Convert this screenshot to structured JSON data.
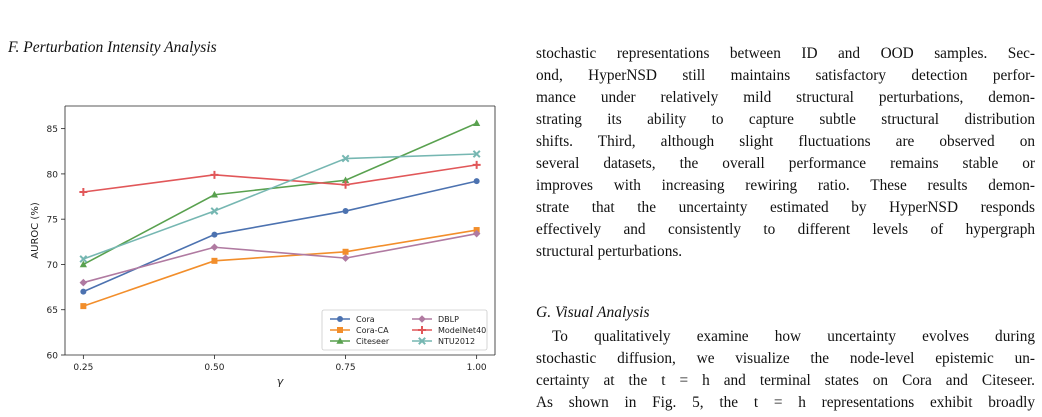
{
  "section_f": {
    "heading": "F. Perturbation Intensity Analysis"
  },
  "section_g": {
    "heading": "G. Visual Analysis"
  },
  "paragraph_1_lines": [
    "stochastic representations between ID and OOD samples. Sec-",
    "ond, HyperNSD still maintains satisfactory detection perfor-",
    "mance under relatively mild structural perturbations, demon-",
    "strating its ability to capture subtle structural distribution",
    "shifts. Third, although slight fluctuations are observed on",
    "several datasets, the overall performance remains stable or",
    "improves with increasing rewiring ratio. These results demon-",
    "strate that the uncertainty estimated by HyperNSD responds",
    "effectively and consistently to different levels of hypergraph",
    "structural perturbations."
  ],
  "paragraph_2_lines": [
    "To qualitatively examine how uncertainty evolves during",
    "stochastic diffusion, we visualize the node-level epistemic un-",
    "certainty at the t = h and terminal states on Cora and Citeseer.",
    "As shown in Fig. 5, the t = h representations exhibit broadly"
  ],
  "chart_data": {
    "type": "line",
    "xlabel": "γ",
    "ylabel": "AUROC (%)",
    "x": [
      0.25,
      0.5,
      0.75,
      1.0
    ],
    "x_tick_labels": [
      "0.25",
      "0.50",
      "0.75",
      "1.00"
    ],
    "y_ticks": [
      60,
      65,
      70,
      75,
      80,
      85
    ],
    "y_tick_labels": [
      "60",
      "65",
      "70",
      "75",
      "80",
      "85"
    ],
    "xlim": [
      0.215,
      1.035
    ],
    "ylim": [
      60,
      87.5
    ],
    "grid": false,
    "legend_position": "lower-right",
    "series": [
      {
        "name": "Cora",
        "color": "#4c72b0",
        "marker": "circle",
        "values": [
          67.0,
          73.3,
          75.9,
          79.2
        ]
      },
      {
        "name": "Cora-CA",
        "color": "#f28e2b",
        "marker": "square",
        "values": [
          65.4,
          70.4,
          71.4,
          73.8
        ]
      },
      {
        "name": "Citeseer",
        "color": "#59a14f",
        "marker": "triangle",
        "values": [
          70.0,
          77.7,
          79.3,
          85.6
        ]
      },
      {
        "name": "DBLP",
        "color": "#b07aa1",
        "marker": "diamond",
        "values": [
          68.0,
          71.9,
          70.7,
          73.4
        ]
      },
      {
        "name": "ModelNet40",
        "color": "#e15759",
        "marker": "plus",
        "values": [
          78.0,
          79.9,
          78.8,
          81.0
        ]
      },
      {
        "name": "NTU2012",
        "color": "#76b7b2",
        "marker": "x",
        "values": [
          70.6,
          75.9,
          81.7,
          82.2
        ]
      }
    ]
  }
}
